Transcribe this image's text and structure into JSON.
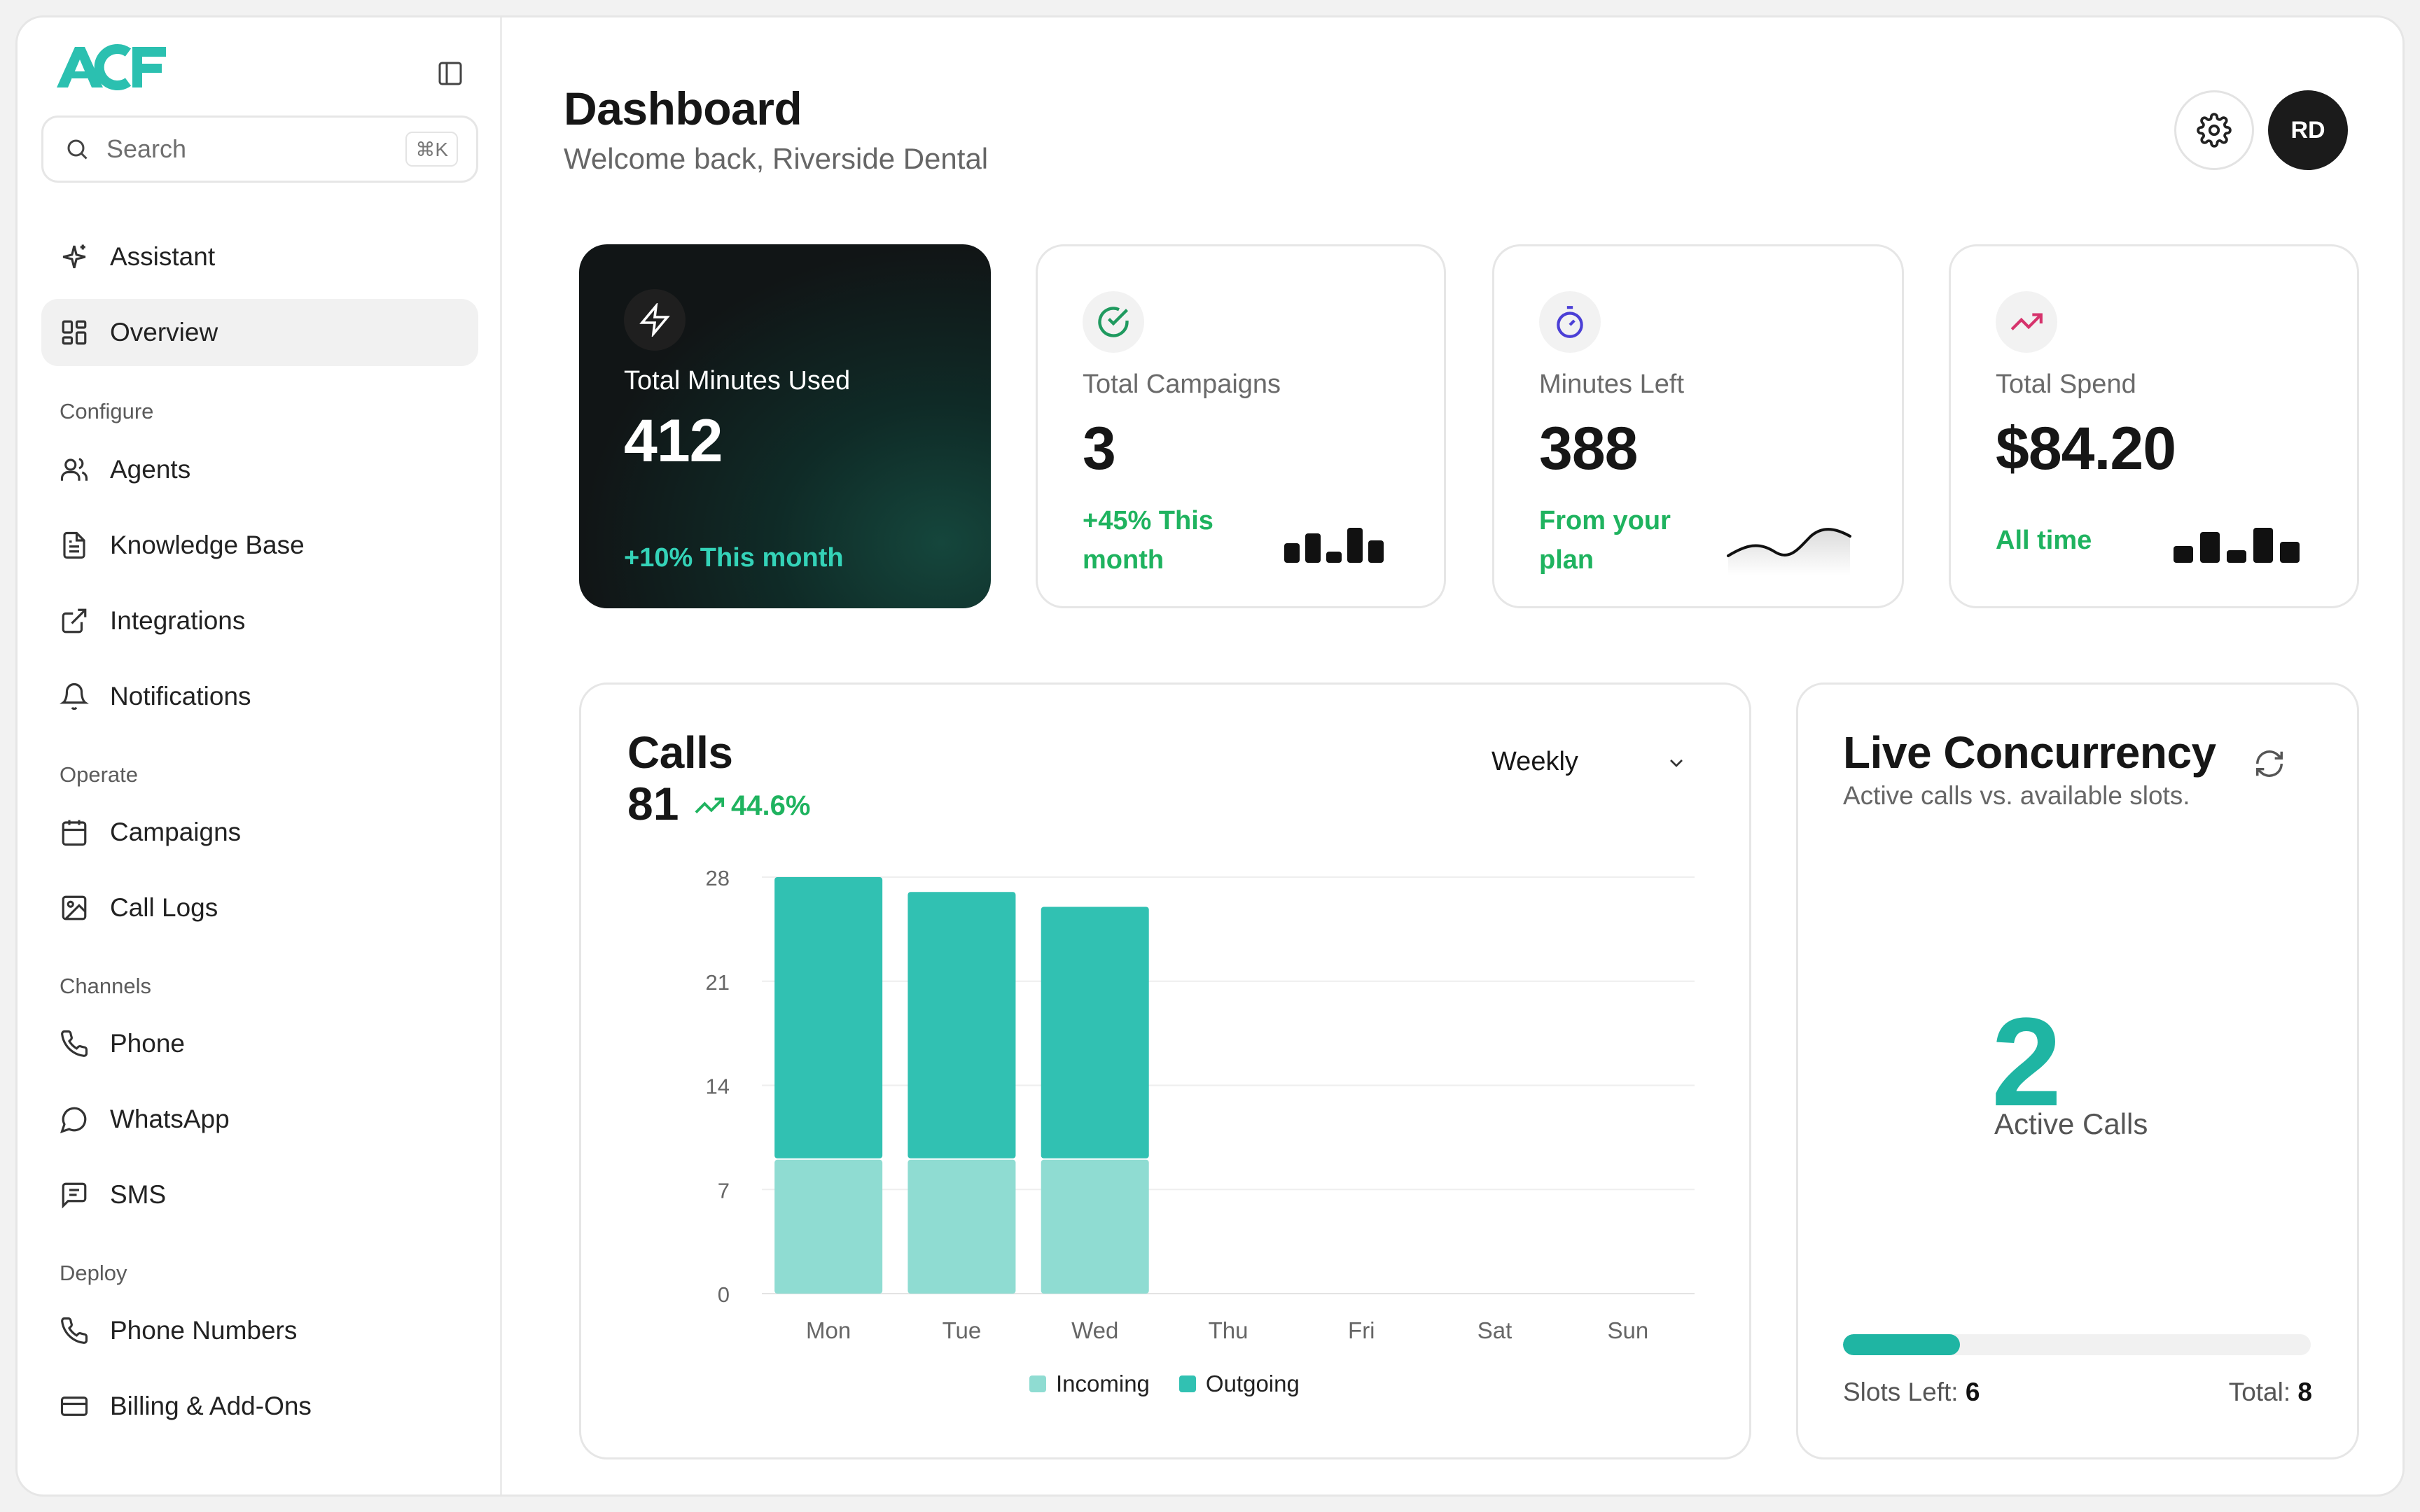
{
  "sidebar": {
    "logo": "ACF",
    "search": {
      "placeholder": "Search",
      "shortcut": "⌘K"
    },
    "items": [
      {
        "label": "Assistant",
        "icon": "sparkle-icon"
      },
      {
        "label": "Overview",
        "icon": "grid-icon",
        "active": true
      }
    ],
    "sections": [
      {
        "title": "Configure",
        "items": [
          {
            "label": "Agents",
            "icon": "users-icon"
          },
          {
            "label": "Knowledge Base",
            "icon": "document-icon"
          },
          {
            "label": "Integrations",
            "icon": "external-link-icon"
          },
          {
            "label": "Notifications",
            "icon": "bell-icon"
          }
        ]
      },
      {
        "title": "Operate",
        "items": [
          {
            "label": "Campaigns",
            "icon": "calendar-icon"
          },
          {
            "label": "Call Logs",
            "icon": "image-icon"
          }
        ]
      },
      {
        "title": "Channels",
        "items": [
          {
            "label": "Phone",
            "icon": "phone-icon"
          },
          {
            "label": "WhatsApp",
            "icon": "chat-bubble-icon"
          },
          {
            "label": "SMS",
            "icon": "message-square-icon"
          }
        ]
      },
      {
        "title": "Deploy",
        "items": [
          {
            "label": "Phone Numbers",
            "icon": "phone-icon"
          },
          {
            "label": "Billing & Add-Ons",
            "icon": "credit-card-icon"
          }
        ]
      }
    ]
  },
  "header": {
    "title": "Dashboard",
    "subtitle": "Welcome back, Riverside Dental",
    "avatar_initials": "RD"
  },
  "stats": [
    {
      "label": "Total Minutes Used",
      "value": "412",
      "note": "+10% This month",
      "icon": "lightning-icon"
    },
    {
      "label": "Total Campaigns",
      "value": "3",
      "note": "+45% This month",
      "icon": "check-circle-icon"
    },
    {
      "label": "Minutes Left",
      "value": "388",
      "note": "From your plan",
      "icon": "stopwatch-icon"
    },
    {
      "label": "Total Spend",
      "value": "$84.20",
      "note": "All time",
      "icon": "trending-up-icon"
    }
  ],
  "colors": {
    "accent": "#1fb5a3",
    "positive": "#1fb35f",
    "incoming": "#8fdcd2",
    "outgoing": "#31c1b2",
    "dark_card": "#111516"
  },
  "calls": {
    "title": "Calls",
    "count": "81",
    "change": "44.6%",
    "period": "Weekly"
  },
  "chart_data": {
    "type": "bar",
    "stacked": true,
    "categories": [
      "Mon",
      "Tue",
      "Wed",
      "Thu",
      "Fri",
      "Sat",
      "Sun"
    ],
    "series": [
      {
        "name": "Incoming",
        "values": [
          9,
          9,
          9,
          0,
          0,
          0,
          0
        ]
      },
      {
        "name": "Outgoing",
        "values": [
          19,
          18,
          17,
          0,
          0,
          0,
          0
        ]
      }
    ],
    "yticks": [
      0,
      7,
      14,
      21,
      28
    ],
    "ylim": [
      0,
      28
    ],
    "grid": true,
    "legend": "bottom"
  },
  "concurrency": {
    "title": "Live Concurrency",
    "subtitle": "Active calls vs. available slots.",
    "active": "2",
    "active_label": "Active Calls",
    "slots_left_label": "Slots Left:",
    "slots_left": "6",
    "total_label": "Total:",
    "total": "8",
    "usage_fraction": 0.25
  }
}
